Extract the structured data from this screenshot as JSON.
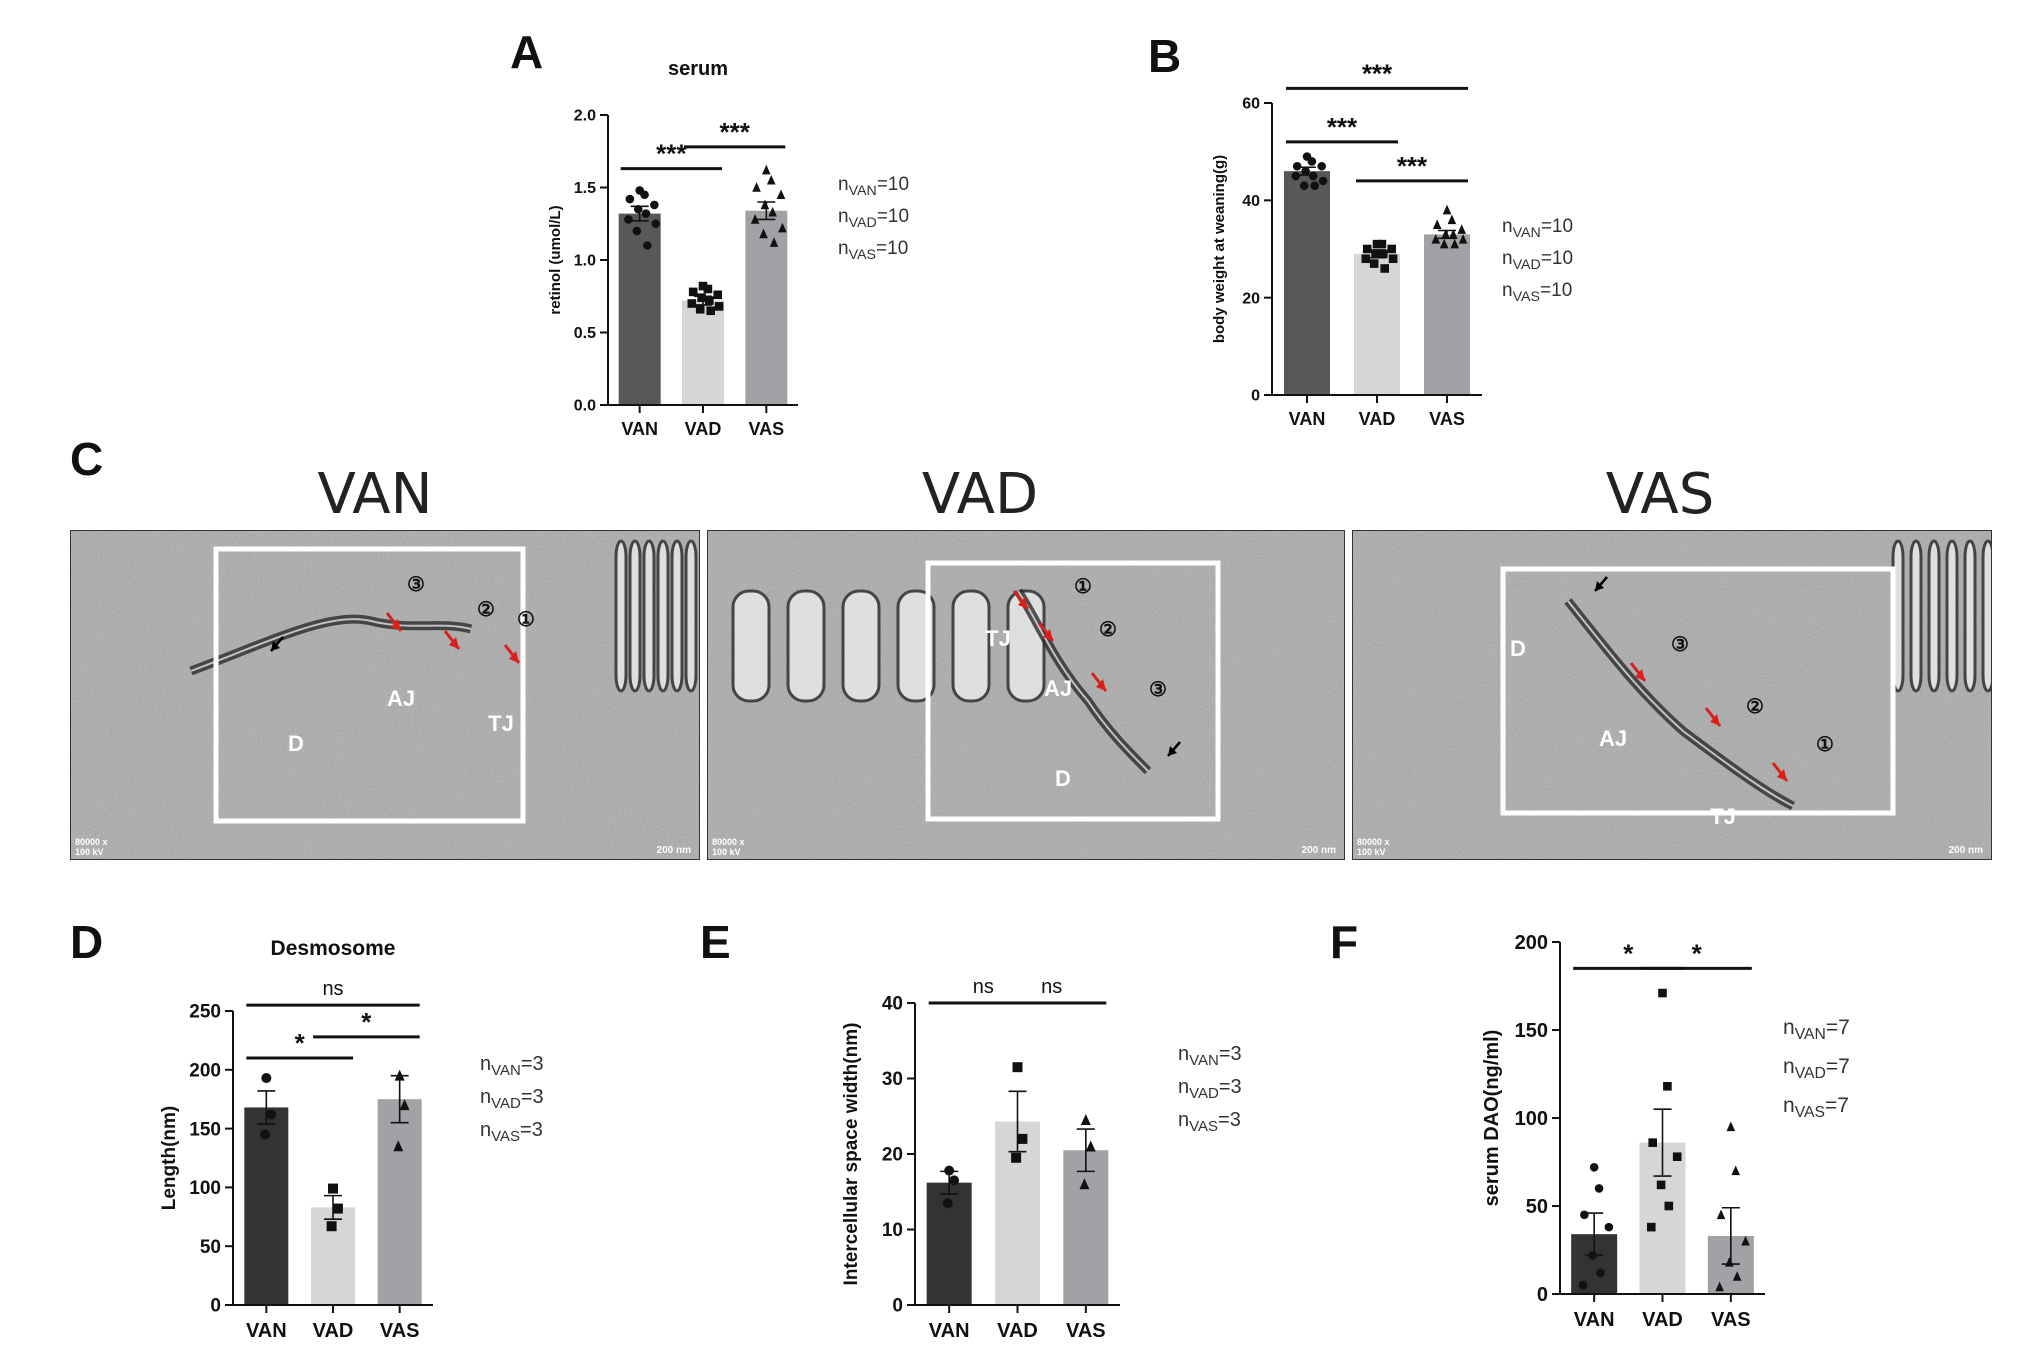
{
  "colors": {
    "VAN": "#585858",
    "VAD": "#d6d6d6",
    "VAS": "#a2a2a6",
    "VAN_D": "#333333",
    "arrow_red": "#d9201c"
  },
  "panel_letters": [
    "A",
    "B",
    "C",
    "D",
    "E",
    "F"
  ],
  "chart_data": [
    {
      "panel": "A",
      "type": "bar",
      "title": "serum",
      "ylabel": "retinol (umol/L)",
      "xlabel": "",
      "categories": [
        "VAN",
        "VAD",
        "VAS"
      ],
      "values": [
        1.32,
        0.72,
        1.34
      ],
      "errors": [
        0.05,
        0.03,
        0.06
      ],
      "ylim": [
        0,
        2.0
      ],
      "yticks": [
        "0.0",
        "0.5",
        "1.0",
        "1.5",
        "2.0"
      ],
      "points": [
        [
          1.48,
          1.45,
          1.42,
          1.38,
          1.35,
          1.32,
          1.28,
          1.25,
          1.2,
          1.1
        ],
        [
          0.82,
          0.8,
          0.78,
          0.76,
          0.74,
          0.72,
          0.7,
          0.68,
          0.66,
          0.65
        ],
        [
          1.62,
          1.55,
          1.5,
          1.45,
          1.38,
          1.33,
          1.28,
          1.22,
          1.18,
          1.12
        ]
      ],
      "markers": [
        "circle",
        "square",
        "triangle"
      ],
      "significance": [
        {
          "from": 0,
          "to": 1,
          "label": "***",
          "y": 1.63
        },
        {
          "from": 1,
          "to": 2,
          "label": "***",
          "y": 1.78
        }
      ],
      "n_labels": [
        {
          "n": "n",
          "sub": "VAN",
          "val": "=10"
        },
        {
          "n": "n",
          "sub": "VAD",
          "val": "=10"
        },
        {
          "n": "n",
          "sub": "VAS",
          "val": "=10"
        }
      ]
    },
    {
      "panel": "B",
      "type": "bar",
      "title": "",
      "ylabel": "body weight at weaning(g)",
      "xlabel": "",
      "categories": [
        "VAN",
        "VAD",
        "VAS"
      ],
      "values": [
        46,
        29,
        33
      ],
      "errors": [
        0.8,
        0.8,
        0.8
      ],
      "ylim": [
        0,
        60
      ],
      "yticks": [
        "0",
        "20",
        "40",
        "60"
      ],
      "points": [
        [
          49,
          48,
          47,
          47,
          46,
          45,
          45,
          44,
          43,
          43
        ],
        [
          31,
          31,
          30,
          30,
          29,
          29,
          28,
          28,
          27,
          26
        ],
        [
          38,
          36,
          35,
          34,
          33,
          33,
          32,
          32,
          31,
          31
        ]
      ],
      "markers": [
        "circle",
        "square",
        "triangle"
      ],
      "significance": [
        {
          "from": 0,
          "to": 1,
          "label": "***",
          "y": 52
        },
        {
          "from": 1,
          "to": 2,
          "label": "***",
          "y": 44
        },
        {
          "from": 0,
          "to": 2,
          "label": "***",
          "y": 63
        }
      ],
      "n_labels": [
        {
          "n": "n",
          "sub": "VAN",
          "val": "=10"
        },
        {
          "n": "n",
          "sub": "VAD",
          "val": "=10"
        },
        {
          "n": "n",
          "sub": "VAS",
          "val": "=10"
        }
      ]
    },
    {
      "panel": "D",
      "type": "bar",
      "title": "Desmosome",
      "ylabel": "Length(nm)",
      "xlabel": "",
      "categories": [
        "VAN",
        "VAD",
        "VAS"
      ],
      "values": [
        168,
        83,
        175
      ],
      "errors": [
        14,
        10,
        20
      ],
      "ylim": [
        0,
        250
      ],
      "yticks": [
        "0",
        "50",
        "100",
        "150",
        "200",
        "250"
      ],
      "points": [
        [
          193,
          162,
          145
        ],
        [
          99,
          82,
          67
        ],
        [
          195,
          170,
          135
        ]
      ],
      "markers": [
        "circle",
        "square",
        "triangle"
      ],
      "significance": [
        {
          "from": 0,
          "to": 1,
          "label": "*",
          "y": 210
        },
        {
          "from": 1,
          "to": 2,
          "label": "*",
          "y": 228
        },
        {
          "from": 0,
          "to": 2,
          "label": "ns",
          "y": 255
        }
      ],
      "n_labels": [
        {
          "n": "n",
          "sub": "VAN",
          "val": "=3"
        },
        {
          "n": "n",
          "sub": "VAD",
          "val": "=3"
        },
        {
          "n": "n",
          "sub": "VAS",
          "val": "=3"
        }
      ]
    },
    {
      "panel": "E",
      "type": "bar",
      "title": "",
      "ylabel": "Intercellular space  width(nm)",
      "xlabel": "",
      "categories": [
        "VAN",
        "VAD",
        "VAS"
      ],
      "values": [
        16.2,
        24.3,
        20.5
      ],
      "errors": [
        1.5,
        4,
        2.8
      ],
      "ylim": [
        0,
        40
      ],
      "yticks": [
        "0",
        "10",
        "20",
        "30",
        "40"
      ],
      "points": [
        [
          17.8,
          16.5,
          13.5
        ],
        [
          31.5,
          22,
          19.5
        ],
        [
          24.5,
          21,
          16
        ]
      ],
      "markers": [
        "circle",
        "square",
        "triangle"
      ],
      "significance": [
        {
          "from": 0,
          "to": 1,
          "label": "ns",
          "y": 40
        },
        {
          "from": 1,
          "to": 2,
          "label": "ns",
          "y": 40
        }
      ],
      "n_labels": [
        {
          "n": "n",
          "sub": "VAN",
          "val": "=3"
        },
        {
          "n": "n",
          "sub": "VAD",
          "val": "=3"
        },
        {
          "n": "n",
          "sub": "VAS",
          "val": "=3"
        }
      ]
    },
    {
      "panel": "F",
      "type": "bar",
      "title": "",
      "ylabel": "serum DAO(ng/ml)",
      "xlabel": "",
      "categories": [
        "VAN",
        "VAD",
        "VAS"
      ],
      "values": [
        34,
        86,
        33
      ],
      "errors": [
        12,
        19,
        16
      ],
      "ylim": [
        0,
        200
      ],
      "yticks": [
        "0",
        "50",
        "100",
        "150",
        "200"
      ],
      "points": [
        [
          72,
          60,
          45,
          38,
          22,
          12,
          5
        ],
        [
          171,
          118,
          86,
          78,
          62,
          50,
          38
        ],
        [
          95,
          70,
          45,
          30,
          18,
          10,
          4
        ]
      ],
      "markers": [
        "circle",
        "square",
        "triangle"
      ],
      "significance": [
        {
          "from": 0,
          "to": 1,
          "label": "*",
          "y": 185
        },
        {
          "from": 1,
          "to": 2,
          "label": "*",
          "y": 185
        }
      ],
      "n_labels": [
        {
          "n": "n",
          "sub": "VAN",
          "val": "=7"
        },
        {
          "n": "n",
          "sub": "VAD",
          "val": "=7"
        },
        {
          "n": "n",
          "sub": "VAS",
          "val": "=7"
        }
      ]
    }
  ],
  "em_panels": [
    {
      "title": "VAN",
      "labels": {
        "d": "D",
        "aj": "AJ",
        "tj": "TJ",
        "c1": "①",
        "c2": "②",
        "c3": "③"
      },
      "scale_left": "80000 x\n100 kV",
      "scale_right": "200 nm"
    },
    {
      "title": "VAD",
      "labels": {
        "d": "D",
        "aj": "AJ",
        "tj": "TJ",
        "c1": "①",
        "c2": "②",
        "c3": "③"
      },
      "scale_left": "80000 x\n100 kV",
      "scale_right": "200 nm"
    },
    {
      "title": "VAS",
      "labels": {
        "d": "D",
        "aj": "AJ",
        "tj": "TJ",
        "c1": "①",
        "c2": "②",
        "c3": "③"
      },
      "scale_left": "80000 x\n100 kV",
      "scale_right": "200 nm"
    }
  ]
}
